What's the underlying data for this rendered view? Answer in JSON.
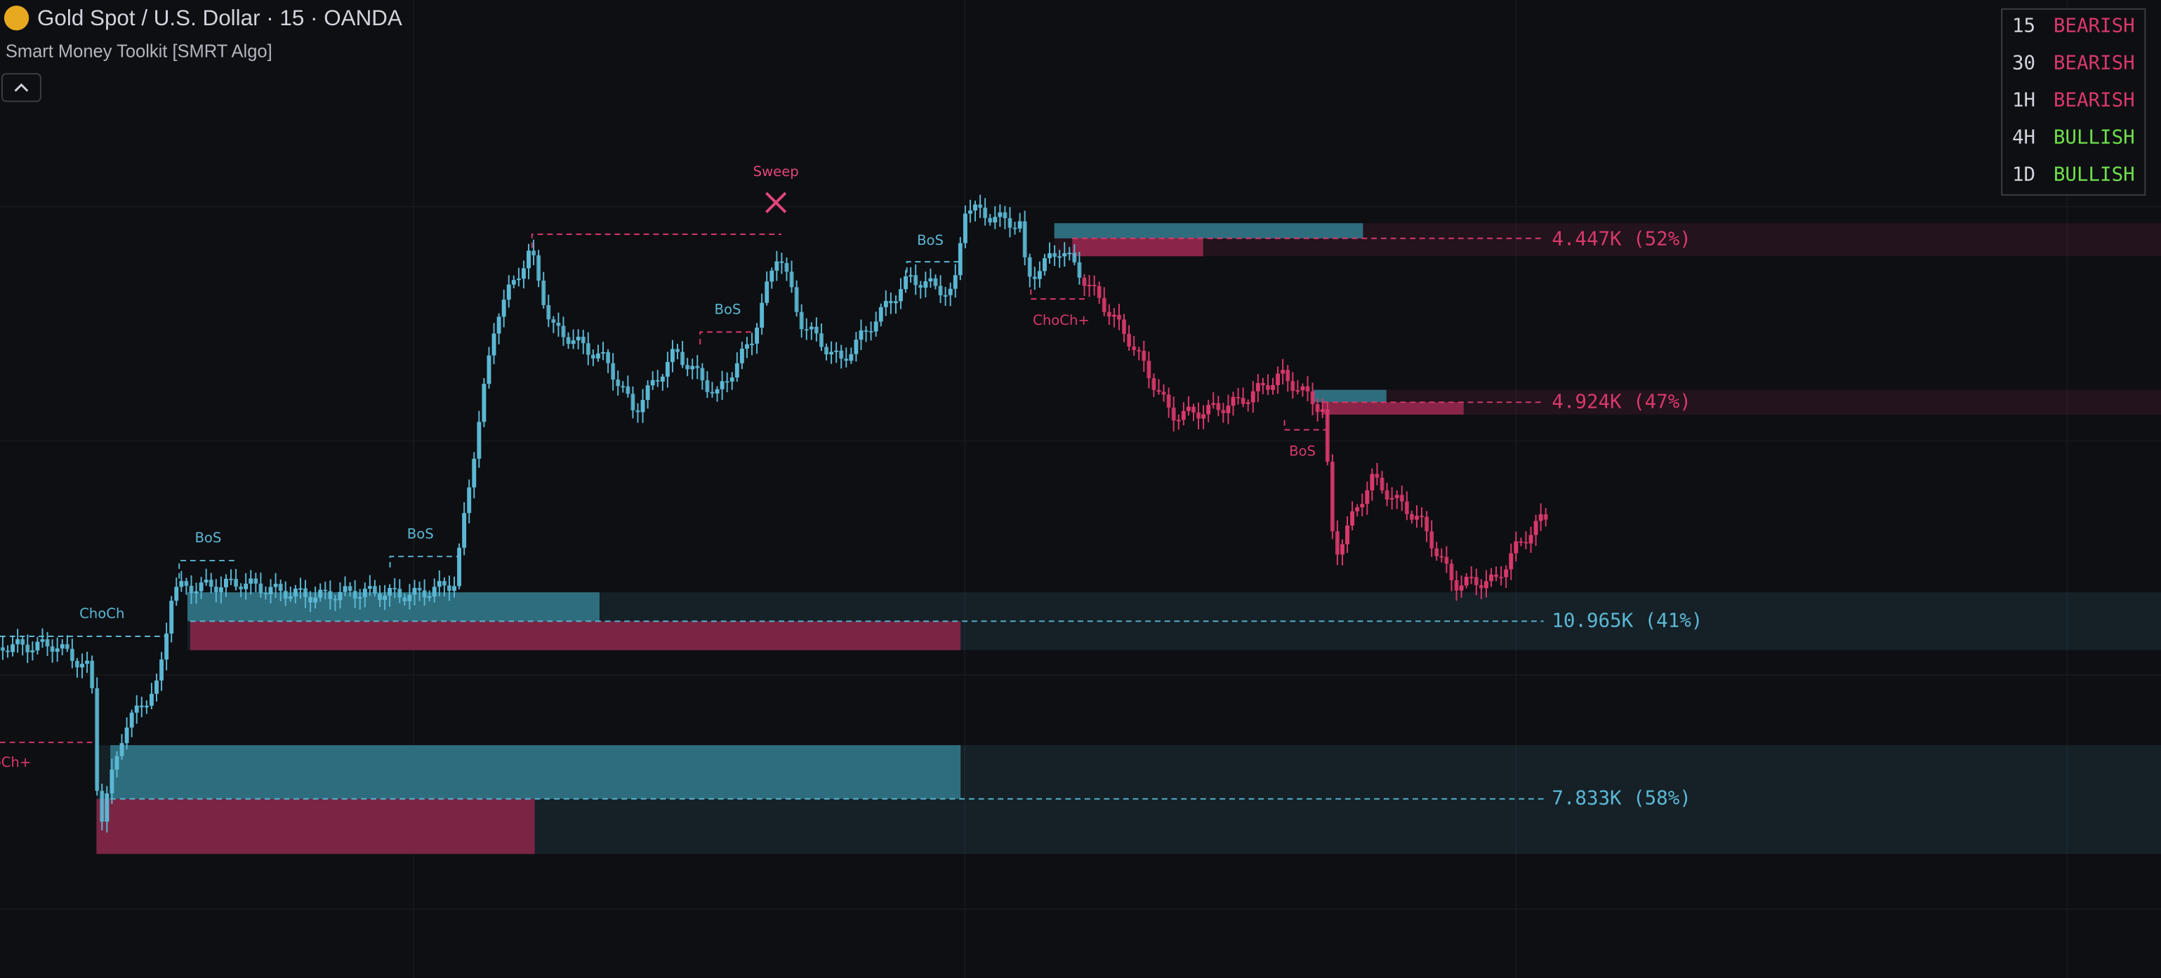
{
  "header": {
    "title": "Gold Spot / U.S. Dollar · 15 · OANDA",
    "indicator": "Smart Money Toolkit [SMRT Algo]"
  },
  "dashboard": {
    "rows": [
      [
        "15",
        "BEARISH"
      ],
      [
        "30",
        "BEARISH"
      ],
      [
        "1H",
        "BEARISH"
      ],
      [
        "4H",
        "BULLISH"
      ],
      [
        "1D",
        "BULLISH"
      ]
    ]
  },
  "zones": [
    {
      "label": "4.447K (52%)"
    },
    {
      "label": "4.924K (47%)"
    },
    {
      "label": "10.965K (41%)"
    },
    {
      "label": "7.833K (58%)"
    }
  ],
  "annotations": [
    "Sweep",
    "BoS",
    "BoS",
    "BoS",
    "BoS",
    "BoS",
    "ChoCh",
    "ChoCh+",
    "ChoCh+"
  ]
}
